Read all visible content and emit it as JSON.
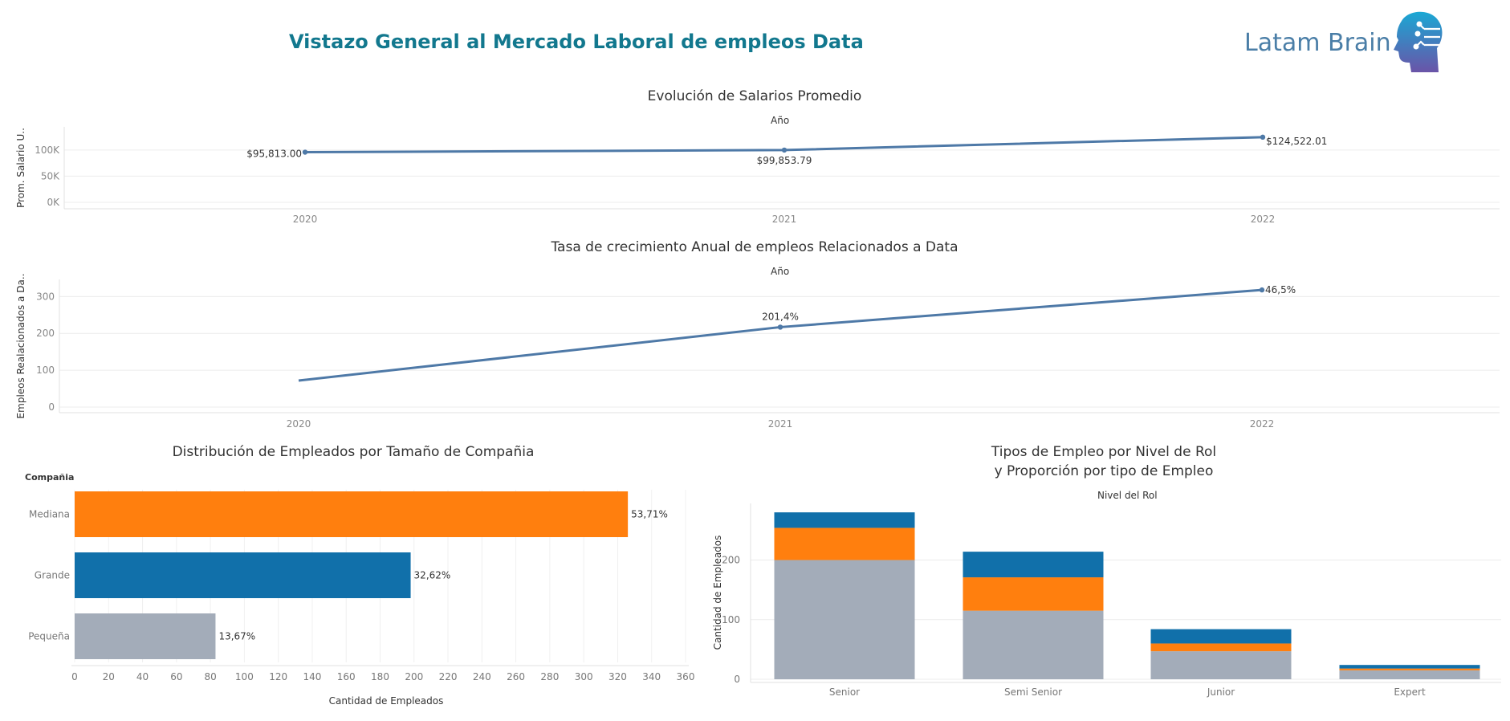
{
  "header": {
    "title": "Vistazo General al Mercado Laboral de empleos Data",
    "brand": "Latam Brain",
    "logo_icon": "head-circuit-icon",
    "title_color": "#12788e",
    "brand_color": "#4a7ea7"
  },
  "chart_data": [
    {
      "type": "line",
      "title": "Evolución de Salarios Promedio",
      "subtitle": "Año",
      "ylabel": "Prom. Salario U..",
      "x": [
        "2020",
        "2021",
        "2022"
      ],
      "values": [
        95813.0,
        99853.79,
        124522.01
      ],
      "labels": [
        "$95,813.00",
        "$99,853.79",
        "$124,522.01"
      ],
      "ylim": [
        0,
        135000
      ],
      "yticks": [
        {
          "v": 0,
          "t": "0K"
        },
        {
          "v": 50000,
          "t": "50K"
        },
        {
          "v": 100000,
          "t": "100K"
        }
      ],
      "grid": true,
      "color": "#4e79a7"
    },
    {
      "type": "line",
      "title": "Tasa de crecimiento Anual de empleos Relacionados a Data",
      "subtitle": "Año",
      "ylabel": "Empleos Realacionados a Da..",
      "x": [
        "2020",
        "2021",
        "2022"
      ],
      "values": [
        72,
        217,
        318
      ],
      "labels": [
        "",
        "201,4%",
        "46,5%"
      ],
      "ylim": [
        0,
        340
      ],
      "yticks": [
        {
          "v": 0,
          "t": "0"
        },
        {
          "v": 100,
          "t": "100"
        },
        {
          "v": 200,
          "t": "200"
        },
        {
          "v": 300,
          "t": "300"
        }
      ],
      "grid": true,
      "color": "#4e79a7"
    },
    {
      "type": "bar",
      "orientation": "horizontal",
      "title": "Distribución de Empleados por Tamaño de Compañia",
      "category_header": "Compañia",
      "xlabel": "Cantidad de Empleados",
      "categories": [
        "Mediana",
        "Grande",
        "Pequeña"
      ],
      "values": [
        326,
        198,
        83
      ],
      "labels": [
        "53,71%",
        "32,62%",
        "13,67%"
      ],
      "colors": [
        "#ff7f0e",
        "#1170aa",
        "#a3acb9"
      ],
      "xlim": [
        0,
        360
      ],
      "xticks": [
        "0",
        "20",
        "40",
        "60",
        "80",
        "100",
        "120",
        "140",
        "160",
        "180",
        "200",
        "220",
        "240",
        "260",
        "280",
        "300",
        "320",
        "340",
        "360"
      ],
      "grid": true
    },
    {
      "type": "bar",
      "stacked": true,
      "title": [
        "Tipos de Empleo por Nivel de Rol",
        "y Proporción por tipo de Empleo"
      ],
      "subtitle": "Nivel del Rol",
      "ylabel": "Cantidad de Empleados",
      "categories": [
        "Senior",
        "Semi Senior",
        "Junior",
        "Expert"
      ],
      "series": [
        {
          "values": [
            200,
            115,
            47,
            15
          ],
          "color": "#a3acb9"
        },
        {
          "values": [
            54,
            56,
            13,
            3
          ],
          "color": "#ff7f0e"
        },
        {
          "values": [
            26,
            43,
            24,
            6
          ],
          "color": "#1170aa"
        }
      ],
      "ylim": [
        0,
        295
      ],
      "yticks": [
        {
          "v": 0,
          "t": "0"
        },
        {
          "v": 100,
          "t": "100"
        },
        {
          "v": 200,
          "t": "200"
        }
      ],
      "grid": true
    }
  ]
}
